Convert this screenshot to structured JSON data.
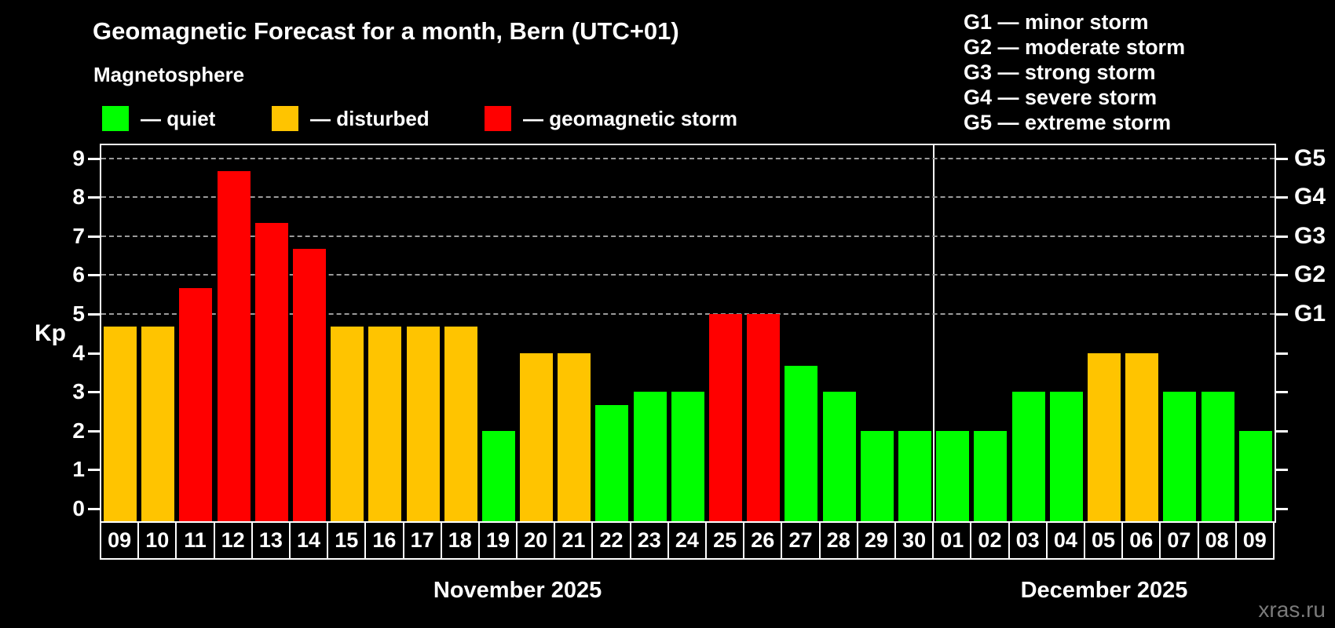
{
  "header": {
    "title": "Geomagnetic Forecast for a month, Bern (UTC+01)",
    "subtitle": "Magnetosphere"
  },
  "legend": {
    "items": [
      {
        "name": "quiet",
        "label": "— quiet",
        "color": "#00ff00"
      },
      {
        "name": "disturbed",
        "label": "— disturbed",
        "color": "#ffc400"
      },
      {
        "name": "storm",
        "label": "— geomagnetic storm",
        "color": "#ff0000"
      }
    ]
  },
  "storm_scale_legend": {
    "items": [
      "G1 — minor storm",
      "G2 — moderate storm",
      "G3 — strong storm",
      "G4 — severe storm",
      "G5 — extreme storm"
    ]
  },
  "axis": {
    "y_label": "Kp",
    "y_ticks": [
      "0",
      "1",
      "2",
      "3",
      "4",
      "5",
      "6",
      "7",
      "8",
      "9"
    ],
    "g_labels": [
      {
        "kp": 5,
        "label": "G1"
      },
      {
        "kp": 6,
        "label": "G2"
      },
      {
        "kp": 7,
        "label": "G3"
      },
      {
        "kp": 8,
        "label": "G4"
      },
      {
        "kp": 9,
        "label": "G5"
      }
    ]
  },
  "watermark": "xras.ru",
  "chart_data": {
    "type": "bar",
    "title": "Geomagnetic Forecast for a month, Bern (UTC+01)",
    "ylabel": "Kp",
    "ylim": [
      0,
      9
    ],
    "grid": "horizontal dashed lines at Kp 5,6,7,8,9 (G1–G5 storm levels)",
    "grid_kp": [
      5,
      6,
      7,
      8,
      9
    ],
    "legend_position": "top",
    "months": [
      {
        "label": "November 2025",
        "days": 22
      },
      {
        "label": "December 2025",
        "days": 9
      }
    ],
    "categories": [
      "09",
      "10",
      "11",
      "12",
      "13",
      "14",
      "15",
      "16",
      "17",
      "18",
      "19",
      "20",
      "21",
      "22",
      "23",
      "24",
      "25",
      "26",
      "27",
      "28",
      "29",
      "30",
      "01",
      "02",
      "03",
      "04",
      "05",
      "06",
      "07",
      "08",
      "09"
    ],
    "values": [
      4.67,
      4.67,
      5.67,
      8.67,
      7.33,
      6.67,
      4.67,
      4.67,
      4.67,
      4.67,
      2,
      4,
      4,
      2.67,
      3,
      3,
      5,
      5,
      3.67,
      3,
      2,
      2,
      2,
      2,
      3,
      3,
      4,
      4,
      3,
      3,
      2
    ],
    "statuses": [
      "disturbed",
      "disturbed",
      "storm",
      "storm",
      "storm",
      "storm",
      "disturbed",
      "disturbed",
      "disturbed",
      "disturbed",
      "quiet",
      "disturbed",
      "disturbed",
      "quiet",
      "quiet",
      "quiet",
      "storm",
      "storm",
      "quiet",
      "quiet",
      "quiet",
      "quiet",
      "quiet",
      "quiet",
      "quiet",
      "quiet",
      "disturbed",
      "disturbed",
      "quiet",
      "quiet",
      "quiet"
    ],
    "colors": {
      "quiet": "#00ff00",
      "disturbed": "#ffc400",
      "storm": "#ff0000"
    }
  }
}
